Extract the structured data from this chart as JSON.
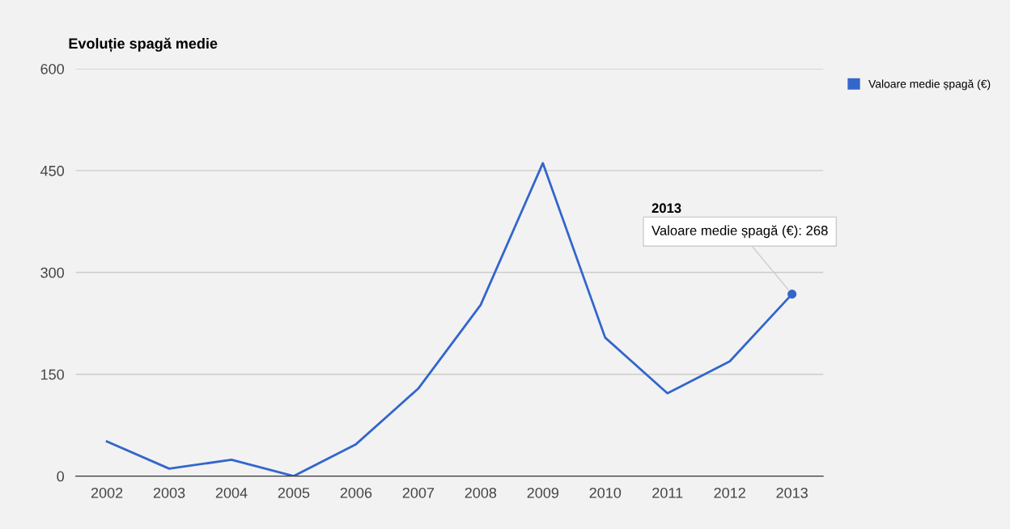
{
  "chart_data": {
    "type": "line",
    "title": "Evoluție spagă medie",
    "categories": [
      "2002",
      "2003",
      "2004",
      "2005",
      "2006",
      "2007",
      "2008",
      "2009",
      "2010",
      "2011",
      "2012",
      "2013"
    ],
    "series": [
      {
        "name": "Valoare medie șpagă (€)",
        "color": "#3366cc",
        "values": [
          51,
          11,
          24,
          0,
          47,
          129,
          252,
          461,
          204,
          122,
          169,
          268
        ]
      }
    ],
    "ylim": [
      0,
      600
    ],
    "yticks": [
      0,
      150,
      300,
      450,
      600
    ],
    "grid": "y",
    "legend": "top right",
    "annotations": [
      "2013",
      {
        "text": "Valoare medie șpagă (€): 268",
        "x": "2013",
        "y": 268
      }
    ]
  }
}
